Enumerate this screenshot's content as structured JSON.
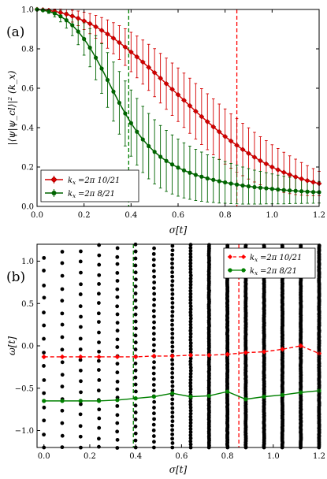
{
  "chart_data": [
    {
      "type": "line",
      "panel_label": "(a)",
      "xlabel": "σ[t]",
      "ylabel": "|⟨ψ|ψ_cl⟩|² (k_x)",
      "xlim": [
        0,
        1.2
      ],
      "ylim": [
        0,
        1.0
      ],
      "xticks": [
        "0.0",
        "0.2",
        "0.4",
        "0.6",
        "0.8",
        "1.0",
        "1.2"
      ],
      "yticks": [
        "0.0",
        "0.2",
        "0.4",
        "0.6",
        "0.8",
        "1.0"
      ],
      "legend_position": "lower-left",
      "vlines": [
        {
          "x": 0.39,
          "color": "#008000"
        },
        {
          "x": 0.85,
          "color": "#ff0000"
        }
      ],
      "series": [
        {
          "name": "k_x = 2π 10/21",
          "label_text": "=2π 10/21",
          "color": "#d40000",
          "marker": "diamond",
          "x": [
            0.0,
            0.025,
            0.05,
            0.075,
            0.1,
            0.125,
            0.15,
            0.175,
            0.2,
            0.225,
            0.25,
            0.275,
            0.3,
            0.325,
            0.35,
            0.375,
            0.4,
            0.425,
            0.45,
            0.475,
            0.5,
            0.525,
            0.55,
            0.575,
            0.6,
            0.625,
            0.65,
            0.675,
            0.7,
            0.725,
            0.75,
            0.775,
            0.8,
            0.825,
            0.85,
            0.875,
            0.9,
            0.925,
            0.95,
            0.975,
            1.0,
            1.025,
            1.05,
            1.075,
            1.1,
            1.125,
            1.15,
            1.175,
            1.2
          ],
          "y": [
            1.0,
            0.998,
            0.995,
            0.99,
            0.984,
            0.976,
            0.966,
            0.955,
            0.942,
            0.928,
            0.912,
            0.894,
            0.875,
            0.854,
            0.832,
            0.809,
            0.784,
            0.759,
            0.733,
            0.706,
            0.679,
            0.651,
            0.623,
            0.595,
            0.567,
            0.539,
            0.511,
            0.483,
            0.456,
            0.43,
            0.404,
            0.379,
            0.355,
            0.332,
            0.31,
            0.289,
            0.269,
            0.25,
            0.232,
            0.216,
            0.2,
            0.186,
            0.173,
            0.161,
            0.15,
            0.14,
            0.131,
            0.123,
            0.116
          ],
          "err": [
            0.0,
            0.003,
            0.007,
            0.012,
            0.018,
            0.024,
            0.03,
            0.037,
            0.044,
            0.051,
            0.058,
            0.065,
            0.072,
            0.079,
            0.086,
            0.093,
            0.1,
            0.106,
            0.112,
            0.117,
            0.122,
            0.126,
            0.13,
            0.133,
            0.136,
            0.138,
            0.14,
            0.141,
            0.142,
            0.142,
            0.142,
            0.141,
            0.14,
            0.138,
            0.136,
            0.133,
            0.13,
            0.126,
            0.122,
            0.118,
            0.113,
            0.108,
            0.102,
            0.096,
            0.09,
            0.083,
            0.076,
            0.069,
            0.062
          ]
        },
        {
          "name": "k_x = 2π 8/21",
          "label_text": "=2π 8/21",
          "color": "#006400",
          "marker": "circle",
          "x": [
            0.0,
            0.025,
            0.05,
            0.075,
            0.1,
            0.125,
            0.15,
            0.175,
            0.2,
            0.225,
            0.25,
            0.275,
            0.3,
            0.325,
            0.35,
            0.375,
            0.4,
            0.425,
            0.45,
            0.475,
            0.5,
            0.525,
            0.55,
            0.575,
            0.6,
            0.625,
            0.65,
            0.675,
            0.7,
            0.725,
            0.75,
            0.775,
            0.8,
            0.825,
            0.85,
            0.875,
            0.9,
            0.925,
            0.95,
            0.975,
            1.0,
            1.025,
            1.05,
            1.075,
            1.1,
            1.125,
            1.15,
            1.175,
            1.2
          ],
          "y": [
            1.0,
            0.996,
            0.99,
            0.98,
            0.965,
            0.945,
            0.92,
            0.888,
            0.85,
            0.806,
            0.755,
            0.7,
            0.642,
            0.583,
            0.526,
            0.472,
            0.423,
            0.379,
            0.34,
            0.306,
            0.277,
            0.252,
            0.231,
            0.213,
            0.197,
            0.183,
            0.171,
            0.16,
            0.151,
            0.142,
            0.135,
            0.128,
            0.122,
            0.116,
            0.111,
            0.106,
            0.102,
            0.098,
            0.095,
            0.092,
            0.089,
            0.086,
            0.083,
            0.081,
            0.079,
            0.077,
            0.075,
            0.073,
            0.072
          ],
          "err": [
            0.0,
            0.004,
            0.01,
            0.018,
            0.028,
            0.04,
            0.053,
            0.067,
            0.082,
            0.097,
            0.112,
            0.126,
            0.139,
            0.15,
            0.159,
            0.165,
            0.168,
            0.169,
            0.168,
            0.166,
            0.163,
            0.159,
            0.155,
            0.15,
            0.145,
            0.14,
            0.135,
            0.13,
            0.125,
            0.12,
            0.115,
            0.111,
            0.106,
            0.102,
            0.098,
            0.094,
            0.09,
            0.086,
            0.083,
            0.079,
            0.076,
            0.073,
            0.07,
            0.067,
            0.064,
            0.062,
            0.059,
            0.057,
            0.055
          ]
        }
      ]
    },
    {
      "type": "scatter",
      "panel_label": "(b)",
      "xlabel": "σ[t]",
      "ylabel": "ω[t]",
      "xlim": [
        -0.03,
        1.2
      ],
      "ylim": [
        -1.2,
        1.2
      ],
      "xticks": [
        "0.0",
        "0.2",
        "0.4",
        "0.6",
        "0.8",
        "1.0",
        "1.2"
      ],
      "yticks": [
        "−1.0",
        "−0.5",
        "0.0",
        "0.5",
        "1.0"
      ],
      "legend_position": "top-right",
      "vlines": [
        {
          "x": 0.39,
          "color": "#008000"
        },
        {
          "x": 0.85,
          "color": "#ff0000"
        }
      ],
      "scatter_x": [
        0.0,
        0.08,
        0.16,
        0.24,
        0.32,
        0.4,
        0.48,
        0.56,
        0.64,
        0.72,
        0.8,
        0.88,
        0.96,
        1.04,
        1.12,
        1.2
      ],
      "series": [
        {
          "name": "k_x = 2π 10/21",
          "label_text": "=2π 10/21",
          "color": "#ff0000",
          "marker": "diamond",
          "dashed": true,
          "x": [
            0.0,
            0.08,
            0.16,
            0.24,
            0.32,
            0.4,
            0.48,
            0.56,
            0.64,
            0.72,
            0.8,
            0.88,
            0.96,
            1.04,
            1.12,
            1.2
          ],
          "y": [
            -0.13,
            -0.13,
            -0.13,
            -0.13,
            -0.13,
            -0.13,
            -0.12,
            -0.12,
            -0.11,
            -0.11,
            -0.1,
            -0.08,
            -0.07,
            -0.04,
            0.0,
            -0.09
          ]
        },
        {
          "name": "k_x = 2π 8/21",
          "label_text": "=2π 8/21",
          "color": "#008000",
          "marker": "circle",
          "dashed": false,
          "x": [
            0.0,
            0.08,
            0.16,
            0.24,
            0.32,
            0.4,
            0.48,
            0.56,
            0.64,
            0.72,
            0.8,
            0.88,
            0.96,
            1.04,
            1.12,
            1.2
          ],
          "y": [
            -0.65,
            -0.65,
            -0.65,
            -0.65,
            -0.64,
            -0.62,
            -0.6,
            -0.56,
            -0.6,
            -0.59,
            -0.54,
            -0.63,
            -0.6,
            -0.58,
            -0.55,
            -0.53
          ]
        }
      ]
    }
  ]
}
